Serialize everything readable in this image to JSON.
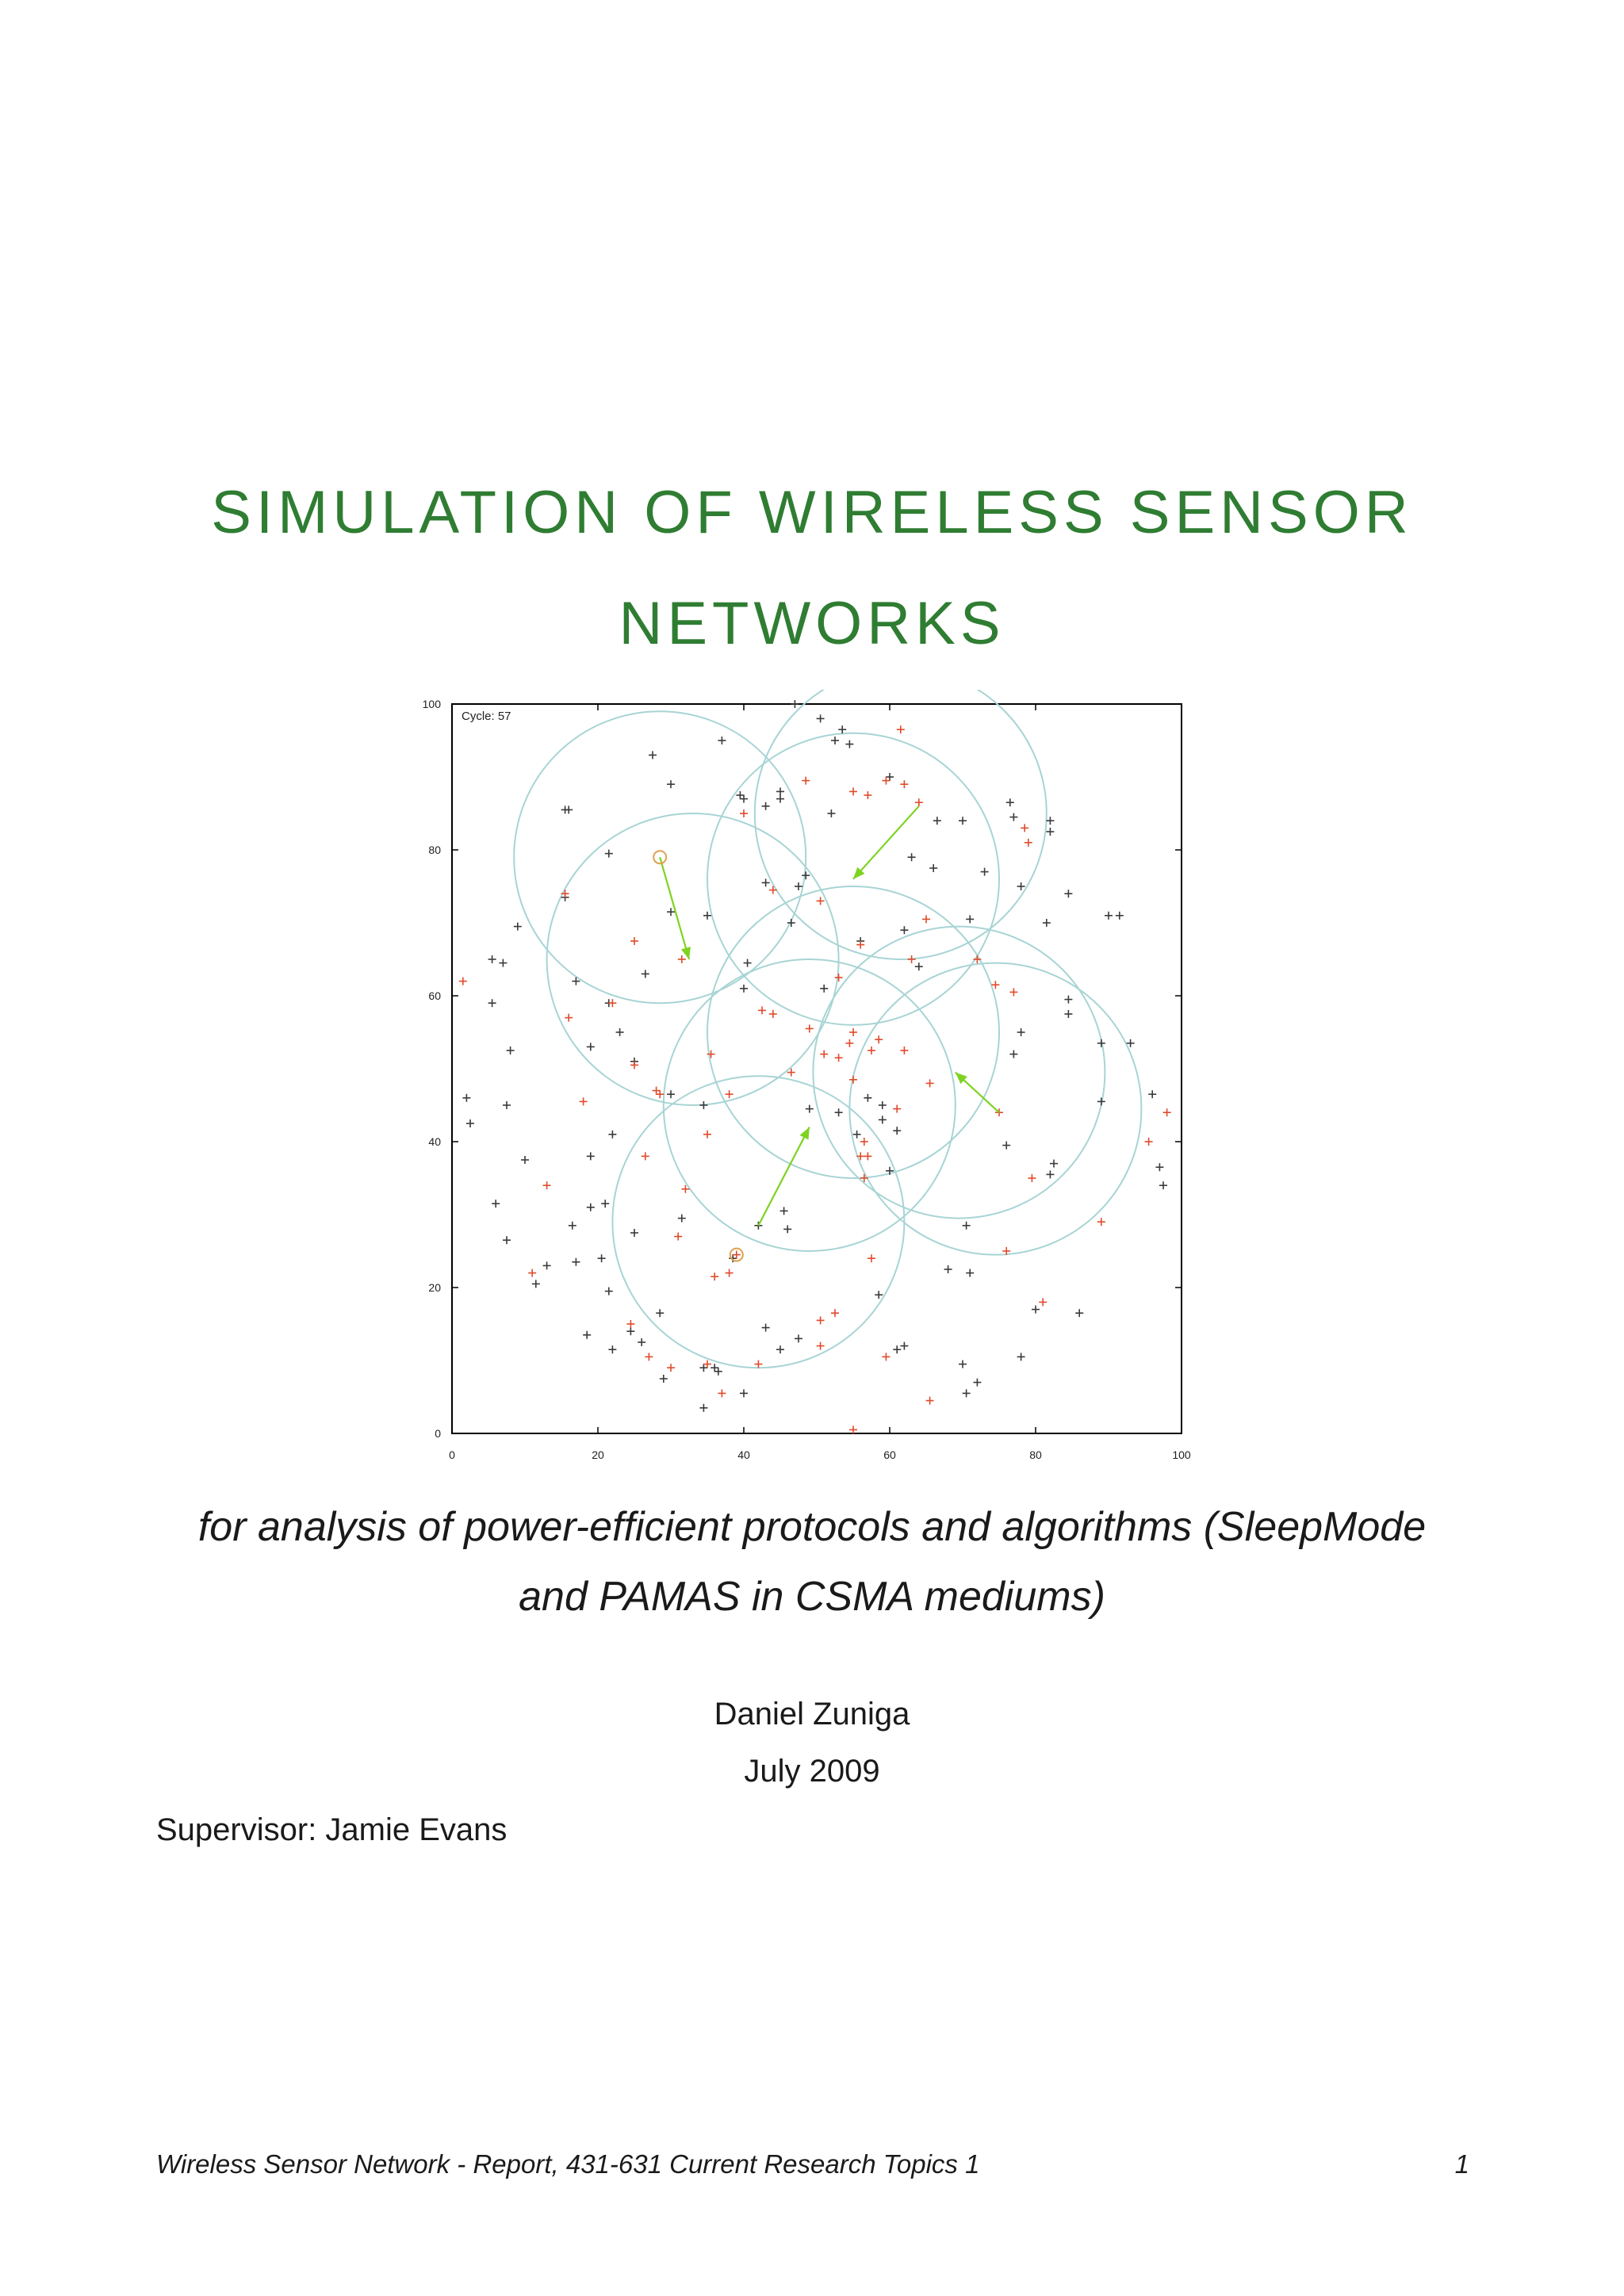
{
  "title": {
    "line1": "SIMULATION OF WIRELESS SENSOR",
    "line2": "NETWORKS",
    "color": "#2f7d32"
  },
  "subtitle": {
    "line1": "for analysis of power-efficient protocols and algorithms (SleepMode",
    "line2": "and PAMAS in CSMA mediums)"
  },
  "author": "Daniel Zuniga",
  "date": "July 2009",
  "supervisor": "Supervisor: Jamie Evans",
  "footer": {
    "text": "Wireless Sensor Network - Report, 431-631 Current Research Topics 1",
    "page_number": "1"
  },
  "chart_data": {
    "type": "scatter",
    "annotation": "Cycle: 57",
    "xlim": [
      0,
      100
    ],
    "ylim": [
      0,
      100
    ],
    "xticks": [
      0,
      20,
      40,
      60,
      80,
      100
    ],
    "yticks": [
      0,
      20,
      40,
      60,
      80,
      100
    ],
    "colors": {
      "node_dark": "#3a3a3a",
      "node_red": "#e04a2a",
      "range_circle": "#a8d4d4",
      "arrow": "#7ed321",
      "source_marker": "#e0a050"
    },
    "circles": [
      {
        "cx": 28.5,
        "cy": 79,
        "r": 20
      },
      {
        "cx": 33,
        "cy": 65,
        "r": 20
      },
      {
        "cx": 55,
        "cy": 76,
        "r": 20
      },
      {
        "cx": 61.5,
        "cy": 85,
        "r": 20
      },
      {
        "cx": 55,
        "cy": 55,
        "r": 20
      },
      {
        "cx": 49,
        "cy": 45,
        "r": 20
      },
      {
        "cx": 42,
        "cy": 29,
        "r": 20
      },
      {
        "cx": 69.5,
        "cy": 49.5,
        "r": 20
      },
      {
        "cx": 74.5,
        "cy": 44.5,
        "r": 20
      }
    ],
    "arrows": [
      {
        "x1": 28.5,
        "y1": 79,
        "x2": 32.5,
        "y2": 65
      },
      {
        "x1": 64,
        "y1": 86,
        "x2": 55,
        "y2": 76
      },
      {
        "x1": 42,
        "y1": 28.5,
        "x2": 49,
        "y2": 42
      },
      {
        "x1": 75,
        "y1": 44,
        "x2": 69,
        "y2": 49.5
      }
    ],
    "source_markers": [
      {
        "x": 28.5,
        "y": 79
      },
      {
        "x": 39,
        "y": 24.5
      }
    ],
    "nodes_dark": [
      [
        15.5,
        85.5
      ],
      [
        16,
        85.5
      ],
      [
        27.5,
        93
      ],
      [
        30,
        89
      ],
      [
        37,
        95
      ],
      [
        40,
        87
      ],
      [
        39.5,
        87.5
      ],
      [
        50.5,
        98
      ],
      [
        52.5,
        95
      ],
      [
        53.5,
        96.5
      ],
      [
        54.5,
        94.5
      ],
      [
        60,
        90
      ],
      [
        47,
        100
      ],
      [
        45,
        88
      ],
      [
        45,
        87
      ],
      [
        43,
        86
      ],
      [
        52,
        85
      ],
      [
        66.5,
        84
      ],
      [
        70,
        84
      ],
      [
        76.5,
        86.5
      ],
      [
        77,
        84.5
      ],
      [
        82,
        84
      ],
      [
        82,
        82.5
      ],
      [
        73,
        77
      ],
      [
        78,
        75
      ],
      [
        81.5,
        70
      ],
      [
        84.5,
        74
      ],
      [
        90,
        71
      ],
      [
        91.5,
        71
      ],
      [
        63,
        79
      ],
      [
        66,
        77.5
      ],
      [
        48.5,
        76.5
      ],
      [
        47.5,
        75
      ],
      [
        43,
        75.5
      ],
      [
        46.5,
        70
      ],
      [
        30,
        71.5
      ],
      [
        35,
        71
      ],
      [
        21.5,
        79.5
      ],
      [
        15.5,
        73.5
      ],
      [
        9,
        69.5
      ],
      [
        5.5,
        65
      ],
      [
        7,
        64.5
      ],
      [
        5.5,
        59
      ],
      [
        8,
        52.5
      ],
      [
        7.5,
        45
      ],
      [
        2,
        46
      ],
      [
        2.5,
        42.5
      ],
      [
        10,
        37.5
      ],
      [
        6,
        31.5
      ],
      [
        7.5,
        26.5
      ],
      [
        11.5,
        20.5
      ],
      [
        13,
        23
      ],
      [
        17,
        23.5
      ],
      [
        20.5,
        24
      ],
      [
        21.5,
        19.5
      ],
      [
        16.5,
        28.5
      ],
      [
        19,
        31
      ],
      [
        21,
        31.5
      ],
      [
        19,
        38
      ],
      [
        22,
        41
      ],
      [
        19,
        53
      ],
      [
        17,
        62
      ],
      [
        23,
        55
      ],
      [
        25,
        51
      ],
      [
        26.5,
        63
      ],
      [
        21.5,
        59
      ],
      [
        40.5,
        64.5
      ],
      [
        40,
        61
      ],
      [
        51,
        61
      ],
      [
        56,
        67.5
      ],
      [
        62,
        69
      ],
      [
        64,
        64
      ],
      [
        71,
        70.5
      ],
      [
        84.5,
        59.5
      ],
      [
        84.5,
        57.5
      ],
      [
        78,
        55
      ],
      [
        77,
        52
      ],
      [
        89,
        53.5
      ],
      [
        93,
        53.5
      ],
      [
        89,
        45.5
      ],
      [
        96,
        46.5
      ],
      [
        97,
        36.5
      ],
      [
        97.5,
        34
      ],
      [
        82.5,
        37
      ],
      [
        82,
        35.5
      ],
      [
        76,
        39.5
      ],
      [
        70.5,
        28.5
      ],
      [
        68,
        22.5
      ],
      [
        71,
        22
      ],
      [
        80,
        17
      ],
      [
        86,
        16.5
      ],
      [
        78,
        10.5
      ],
      [
        57,
        46
      ],
      [
        59,
        45
      ],
      [
        59,
        43
      ],
      [
        61,
        41.5
      ],
      [
        60,
        36
      ],
      [
        55.5,
        41
      ],
      [
        53,
        44
      ],
      [
        49,
        44.5
      ],
      [
        45.5,
        30.5
      ],
      [
        46,
        28
      ],
      [
        42,
        28.5
      ],
      [
        38.5,
        24
      ],
      [
        34.5,
        45
      ],
      [
        30,
        46.5
      ],
      [
        31.5,
        29.5
      ],
      [
        25,
        27.5
      ],
      [
        28.5,
        16.5
      ],
      [
        26,
        12.5
      ],
      [
        24.5,
        14
      ],
      [
        22,
        11.5
      ],
      [
        18.5,
        13.5
      ],
      [
        29,
        7.5
      ],
      [
        34.5,
        9
      ],
      [
        34.5,
        3.5
      ],
      [
        36,
        9
      ],
      [
        36.5,
        8.5
      ],
      [
        40,
        5.5
      ],
      [
        43,
        14.5
      ],
      [
        45,
        11.5
      ],
      [
        47.5,
        13
      ],
      [
        58.5,
        19
      ],
      [
        61,
        11.5
      ],
      [
        62,
        12
      ],
      [
        70,
        9.5
      ],
      [
        70.5,
        5.5
      ],
      [
        72,
        7
      ]
    ],
    "nodes_red": [
      [
        61.5,
        96.5
      ],
      [
        48.5,
        89.5
      ],
      [
        55,
        88
      ],
      [
        57,
        87.5
      ],
      [
        59.5,
        89.5
      ],
      [
        62,
        89
      ],
      [
        64,
        86.5
      ],
      [
        40,
        85
      ],
      [
        44,
        74.5
      ],
      [
        50.5,
        73
      ],
      [
        78.5,
        83
      ],
      [
        79,
        81
      ],
      [
        65,
        70.5
      ],
      [
        72,
        65
      ],
      [
        63,
        65
      ],
      [
        56,
        67
      ],
      [
        53,
        62.5
      ],
      [
        15.5,
        74
      ],
      [
        25,
        67.5
      ],
      [
        31.5,
        65
      ],
      [
        1.5,
        62
      ],
      [
        22,
        59
      ],
      [
        16,
        57
      ],
      [
        25,
        50.5
      ],
      [
        28,
        47
      ],
      [
        28.5,
        46.5
      ],
      [
        18,
        45.5
      ],
      [
        35.5,
        52
      ],
      [
        38,
        46.5
      ],
      [
        35,
        41
      ],
      [
        26.5,
        38
      ],
      [
        13,
        34
      ],
      [
        11,
        22
      ],
      [
        31,
        27
      ],
      [
        32,
        33.5
      ],
      [
        36,
        21.5
      ],
      [
        38,
        22
      ],
      [
        24.5,
        15
      ],
      [
        27,
        10.5
      ],
      [
        30,
        9
      ],
      [
        35,
        9.5
      ],
      [
        37,
        5.5
      ],
      [
        42,
        9.5
      ],
      [
        50.5,
        12
      ],
      [
        50.5,
        15.5
      ],
      [
        52.5,
        16.5
      ],
      [
        55,
        0.5
      ],
      [
        59.5,
        10.5
      ],
      [
        65.5,
        4.5
      ],
      [
        57.5,
        24
      ],
      [
        56.5,
        40
      ],
      [
        56,
        38
      ],
      [
        57,
        38
      ],
      [
        56.5,
        35
      ],
      [
        55,
        48.5
      ],
      [
        58.5,
        54
      ],
      [
        57.5,
        52.5
      ],
      [
        54.5,
        53.5
      ],
      [
        53,
        51.5
      ],
      [
        51,
        52
      ],
      [
        55,
        55
      ],
      [
        65.5,
        48
      ],
      [
        62,
        52.5
      ],
      [
        61,
        44.5
      ],
      [
        74.5,
        61.5
      ],
      [
        77,
        60.5
      ],
      [
        75,
        44
      ],
      [
        76,
        25
      ],
      [
        79.5,
        35
      ],
      [
        81,
        18
      ],
      [
        89,
        29
      ],
      [
        95.5,
        40
      ],
      [
        98,
        44
      ],
      [
        44,
        57.5
      ],
      [
        49,
        55.5
      ],
      [
        46.5,
        49.5
      ],
      [
        42.5,
        58
      ],
      [
        39,
        24.5
      ]
    ]
  }
}
